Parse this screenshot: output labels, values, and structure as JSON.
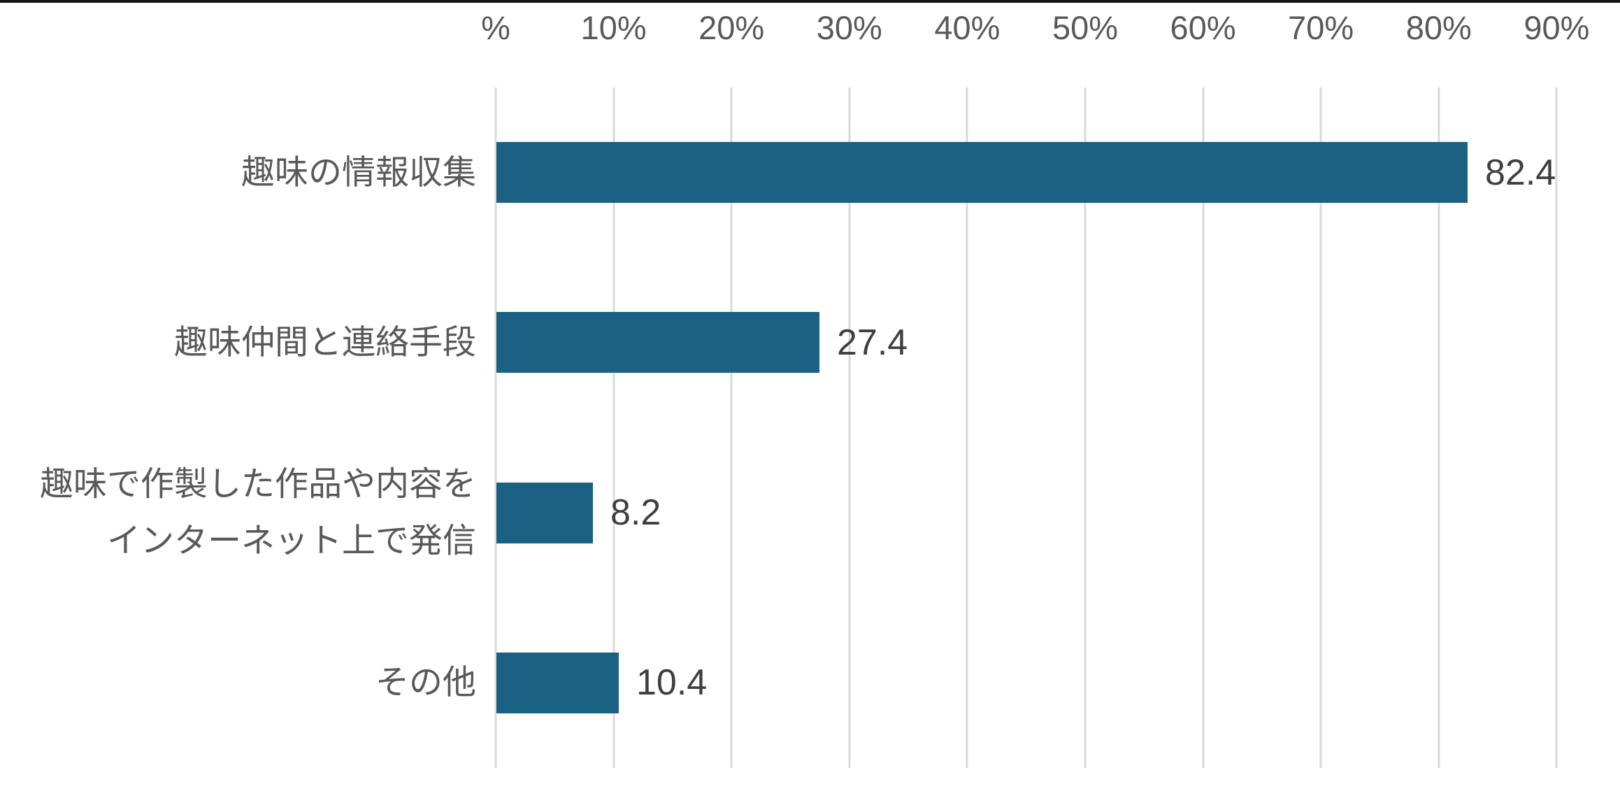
{
  "chart_data": {
    "type": "bar",
    "orientation": "horizontal",
    "title": "",
    "xlabel": "",
    "ylabel": "",
    "categories": [
      "趣味の情報収集",
      "趣味仲間と連絡手段",
      "趣味で作製した作品や内容を\nインターネット上で発信",
      "その他"
    ],
    "values": [
      82.4,
      27.4,
      8.2,
      10.4
    ],
    "value_labels": [
      "82.4",
      "27.4",
      "8.2",
      "10.4"
    ],
    "x_ticks": [
      "%",
      "10%",
      "20%",
      "30%",
      "40%",
      "50%",
      "60%",
      "70%",
      "80%",
      "90%"
    ],
    "xlim": [
      0,
      90
    ],
    "x_tick_step": 10,
    "grid": true,
    "legend": "none",
    "colors": {
      "bar": "#1A6184",
      "gridline": "#D9D9D9",
      "tick_text": "#595959",
      "category_text": "#595959",
      "value_text": "#3F3F3F",
      "top_border": "#141414",
      "background": "#FFFFFF"
    }
  }
}
